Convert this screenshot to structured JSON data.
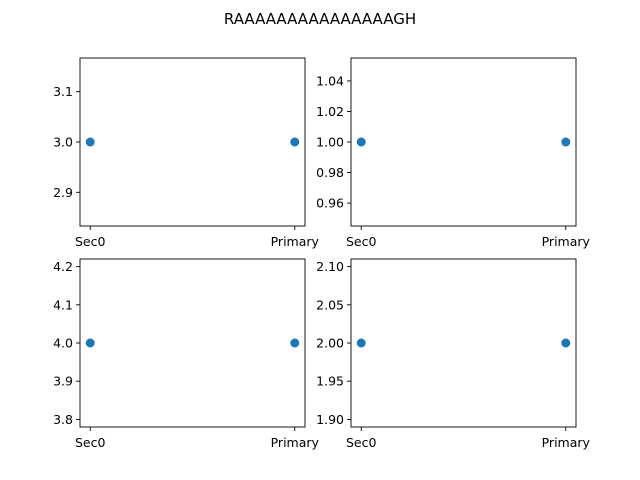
{
  "figure": {
    "suptitle": "RAAAAAAAAAAAAAAAGH"
  },
  "style": {
    "point_color": "#1f77b4",
    "axis_color": "#000000",
    "background": "#ffffff"
  },
  "chart_data": [
    {
      "type": "scatter",
      "categories": [
        "Sec0",
        "Primary"
      ],
      "series": [
        {
          "values": [
            3.0,
            3.0
          ]
        }
      ],
      "ylim": [
        2.833,
        3.167
      ],
      "yticks": [
        "2.9",
        "3.0",
        "3.1"
      ],
      "xlabel": "",
      "ylabel": "",
      "grid": false
    },
    {
      "type": "scatter",
      "categories": [
        "Sec0",
        "Primary"
      ],
      "series": [
        {
          "values": [
            1.0,
            1.0
          ]
        }
      ],
      "ylim": [
        0.945,
        1.055
      ],
      "yticks": [
        "0.96",
        "0.98",
        "1.00",
        "1.02",
        "1.04"
      ],
      "xlabel": "",
      "ylabel": "",
      "grid": false
    },
    {
      "type": "scatter",
      "categories": [
        "Sec0",
        "Primary"
      ],
      "series": [
        {
          "values": [
            4.0,
            4.0
          ]
        }
      ],
      "ylim": [
        3.78,
        4.22
      ],
      "yticks": [
        "3.8",
        "3.9",
        "4.0",
        "4.1",
        "4.2"
      ],
      "xlabel": "",
      "ylabel": "",
      "grid": false
    },
    {
      "type": "scatter",
      "categories": [
        "Sec0",
        "Primary"
      ],
      "series": [
        {
          "values": [
            2.0,
            2.0
          ]
        }
      ],
      "ylim": [
        1.89,
        2.11
      ],
      "yticks": [
        "1.90",
        "1.95",
        "2.00",
        "2.05",
        "2.10"
      ],
      "xlabel": "",
      "ylabel": "",
      "grid": false
    }
  ]
}
